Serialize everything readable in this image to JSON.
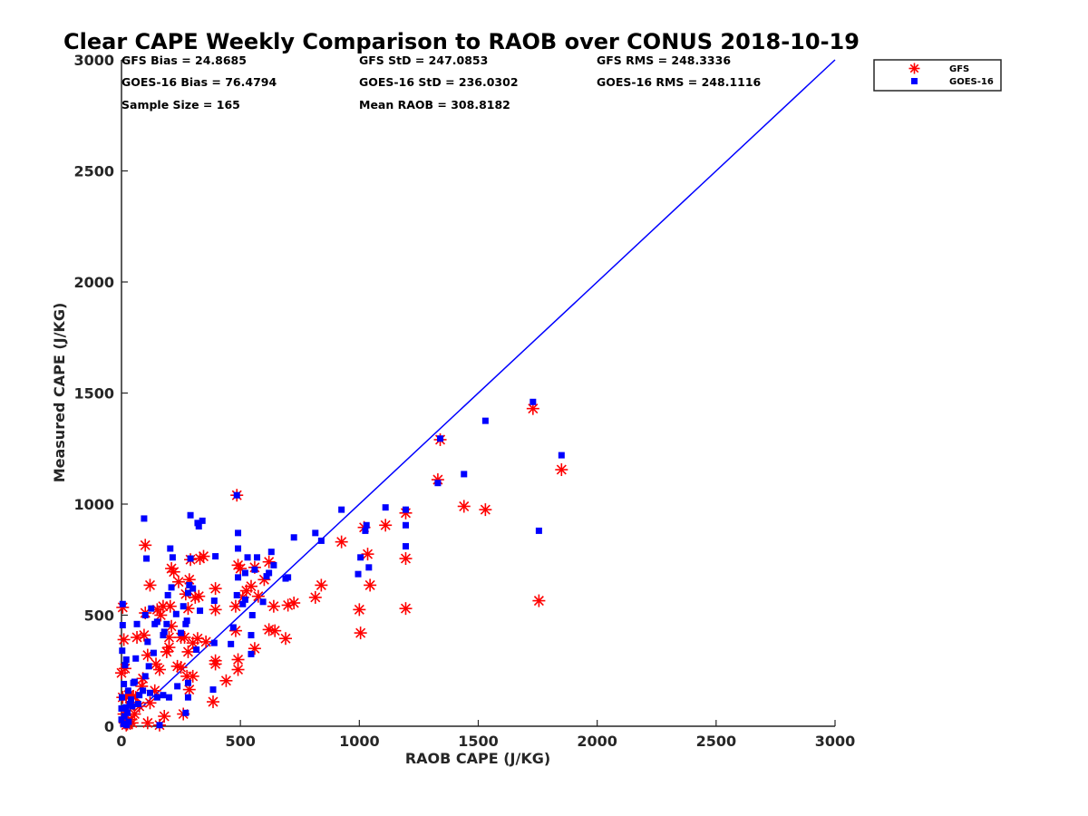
{
  "chart_data": {
    "type": "scatter",
    "title": "Clear CAPE Weekly Comparison to RAOB over CONUS 2018-10-19",
    "xlabel": "RAOB CAPE (J/KG)",
    "ylabel": "Measured CAPE (J/KG)",
    "xlim": [
      0,
      3000
    ],
    "ylim": [
      0,
      3000
    ],
    "xticks": [
      "0",
      "500",
      "1000",
      "1500",
      "2000",
      "2500",
      "3000"
    ],
    "yticks": [
      "0",
      "500",
      "1000",
      "1500",
      "2000",
      "2500",
      "3000"
    ],
    "grid": false,
    "legend_position": "top-right",
    "reference_line": {
      "x": [
        0,
        3000
      ],
      "y": [
        0,
        3000
      ],
      "color": "#0000ff"
    },
    "stats": [
      "GFS Bias = 24.8685",
      "GFS StD = 247.0853",
      "GFS RMS = 248.3336",
      "GOES-16 Bias = 76.4794",
      "GOES-16 StD = 236.0302",
      "GOES-16 RMS = 248.1116",
      "Sample Size = 165",
      "Mean RAOB = 308.8182"
    ],
    "series": [
      {
        "name": "GFS",
        "marker": "asterisk",
        "color": "#ff0000",
        "points": [
          [
            1730,
            1430
          ],
          [
            1850,
            1155
          ],
          [
            1755,
            565
          ],
          [
            1530,
            975
          ],
          [
            1440,
            990
          ],
          [
            1340,
            1290
          ],
          [
            1330,
            1110
          ],
          [
            1195,
            960
          ],
          [
            1195,
            755
          ],
          [
            1195,
            530
          ],
          [
            1110,
            905
          ],
          [
            1035,
            775
          ],
          [
            1045,
            635
          ],
          [
            1020,
            895
          ],
          [
            1000,
            525
          ],
          [
            1005,
            420
          ],
          [
            925,
            830
          ],
          [
            840,
            635
          ],
          [
            815,
            580
          ],
          [
            725,
            555
          ],
          [
            700,
            545
          ],
          [
            690,
            395
          ],
          [
            640,
            540
          ],
          [
            645,
            430
          ],
          [
            620,
            740
          ],
          [
            620,
            435
          ],
          [
            600,
            660
          ],
          [
            575,
            585
          ],
          [
            560,
            715
          ],
          [
            560,
            350
          ],
          [
            545,
            630
          ],
          [
            525,
            610
          ],
          [
            510,
            580
          ],
          [
            500,
            710
          ],
          [
            490,
            725
          ],
          [
            485,
            1040
          ],
          [
            480,
            540
          ],
          [
            480,
            430
          ],
          [
            490,
            300
          ],
          [
            490,
            255
          ],
          [
            440,
            205
          ],
          [
            395,
            620
          ],
          [
            395,
            525
          ],
          [
            395,
            295
          ],
          [
            395,
            280
          ],
          [
            385,
            110
          ],
          [
            330,
            755
          ],
          [
            325,
            585
          ],
          [
            320,
            395
          ],
          [
            310,
            580
          ],
          [
            300,
            375
          ],
          [
            290,
            750
          ],
          [
            285,
            660
          ],
          [
            280,
            530
          ],
          [
            280,
            335
          ],
          [
            275,
            225
          ],
          [
            285,
            165
          ],
          [
            270,
            595
          ],
          [
            265,
            400
          ],
          [
            260,
            55
          ],
          [
            250,
            400
          ],
          [
            240,
            650
          ],
          [
            220,
            695
          ],
          [
            210,
            710
          ],
          [
            210,
            450
          ],
          [
            205,
            540
          ],
          [
            200,
            400
          ],
          [
            200,
            355
          ],
          [
            190,
            335
          ],
          [
            175,
            540
          ],
          [
            165,
            500
          ],
          [
            160,
            255
          ],
          [
            150,
            525
          ],
          [
            145,
            280
          ],
          [
            120,
            635
          ],
          [
            110,
            320
          ],
          [
            100,
            815
          ],
          [
            100,
            510
          ],
          [
            95,
            410
          ],
          [
            90,
            215
          ],
          [
            85,
            180
          ],
          [
            65,
            400
          ],
          [
            60,
            130
          ],
          [
            55,
            55
          ],
          [
            50,
            135
          ],
          [
            45,
            15
          ],
          [
            40,
            30
          ],
          [
            35,
            90
          ],
          [
            30,
            140
          ],
          [
            25,
            10
          ],
          [
            20,
            130
          ],
          [
            15,
            260
          ],
          [
            10,
            390
          ],
          [
            5,
            535
          ],
          [
            0,
            240
          ],
          [
            5,
            130
          ],
          [
            10,
            55
          ],
          [
            15,
            15
          ],
          [
            20,
            5
          ],
          [
            75,
            90
          ],
          [
            110,
            15
          ],
          [
            160,
            5
          ],
          [
            140,
            160
          ],
          [
            120,
            105
          ],
          [
            180,
            45
          ],
          [
            250,
            265
          ],
          [
            300,
            225
          ],
          [
            345,
            765
          ],
          [
            355,
            380
          ],
          [
            235,
            270
          ]
        ]
      },
      {
        "name": "GOES-16",
        "marker": "square",
        "color": "#0000ff",
        "points": [
          [
            1730,
            1460
          ],
          [
            1850,
            1220
          ],
          [
            1755,
            880
          ],
          [
            1530,
            1375
          ],
          [
            1440,
            1135
          ],
          [
            1340,
            1295
          ],
          [
            1330,
            1095
          ],
          [
            1195,
            975
          ],
          [
            1195,
            905
          ],
          [
            1195,
            810
          ],
          [
            1110,
            985
          ],
          [
            1040,
            715
          ],
          [
            1030,
            905
          ],
          [
            1025,
            880
          ],
          [
            1005,
            760
          ],
          [
            995,
            685
          ],
          [
            925,
            975
          ],
          [
            840,
            835
          ],
          [
            815,
            870
          ],
          [
            725,
            850
          ],
          [
            700,
            670
          ],
          [
            690,
            665
          ],
          [
            640,
            725
          ],
          [
            630,
            785
          ],
          [
            620,
            690
          ],
          [
            610,
            675
          ],
          [
            595,
            560
          ],
          [
            570,
            760
          ],
          [
            560,
            705
          ],
          [
            550,
            500
          ],
          [
            545,
            410
          ],
          [
            545,
            325
          ],
          [
            530,
            760
          ],
          [
            520,
            690
          ],
          [
            520,
            570
          ],
          [
            510,
            550
          ],
          [
            490,
            870
          ],
          [
            490,
            800
          ],
          [
            485,
            1040
          ],
          [
            490,
            670
          ],
          [
            485,
            590
          ],
          [
            470,
            445
          ],
          [
            460,
            370
          ],
          [
            395,
            765
          ],
          [
            390,
            565
          ],
          [
            390,
            375
          ],
          [
            385,
            165
          ],
          [
            340,
            925
          ],
          [
            330,
            520
          ],
          [
            325,
            900
          ],
          [
            320,
            915
          ],
          [
            315,
            345
          ],
          [
            300,
            620
          ],
          [
            290,
            950
          ],
          [
            290,
            755
          ],
          [
            285,
            635
          ],
          [
            280,
            600
          ],
          [
            275,
            475
          ],
          [
            270,
            460
          ],
          [
            280,
            195
          ],
          [
            280,
            130
          ],
          [
            270,
            60
          ],
          [
            260,
            540
          ],
          [
            250,
            420
          ],
          [
            230,
            505
          ],
          [
            215,
            760
          ],
          [
            210,
            625
          ],
          [
            205,
            800
          ],
          [
            195,
            590
          ],
          [
            190,
            460
          ],
          [
            180,
            425
          ],
          [
            175,
            410
          ],
          [
            175,
            140
          ],
          [
            150,
            470
          ],
          [
            140,
            460
          ],
          [
            135,
            330
          ],
          [
            125,
            530
          ],
          [
            115,
            270
          ],
          [
            110,
            380
          ],
          [
            105,
            755
          ],
          [
            100,
            500
          ],
          [
            100,
            225
          ],
          [
            95,
            935
          ],
          [
            90,
            160
          ],
          [
            75,
            140
          ],
          [
            70,
            100
          ],
          [
            65,
            460
          ],
          [
            60,
            305
          ],
          [
            55,
            200
          ],
          [
            50,
            195
          ],
          [
            45,
            90
          ],
          [
            40,
            120
          ],
          [
            35,
            100
          ],
          [
            30,
            20
          ],
          [
            25,
            60
          ],
          [
            20,
            300
          ],
          [
            15,
            275
          ],
          [
            10,
            190
          ],
          [
            5,
            550
          ],
          [
            5,
            455
          ],
          [
            3,
            340
          ],
          [
            0,
            80
          ],
          [
            0,
            30
          ],
          [
            2,
            130
          ],
          [
            8,
            10
          ],
          [
            12,
            45
          ],
          [
            18,
            85
          ],
          [
            22,
            5
          ],
          [
            28,
            160
          ],
          [
            120,
            150
          ],
          [
            160,
            5
          ],
          [
            200,
            130
          ],
          [
            150,
            130
          ],
          [
            235,
            180
          ]
        ]
      }
    ]
  }
}
